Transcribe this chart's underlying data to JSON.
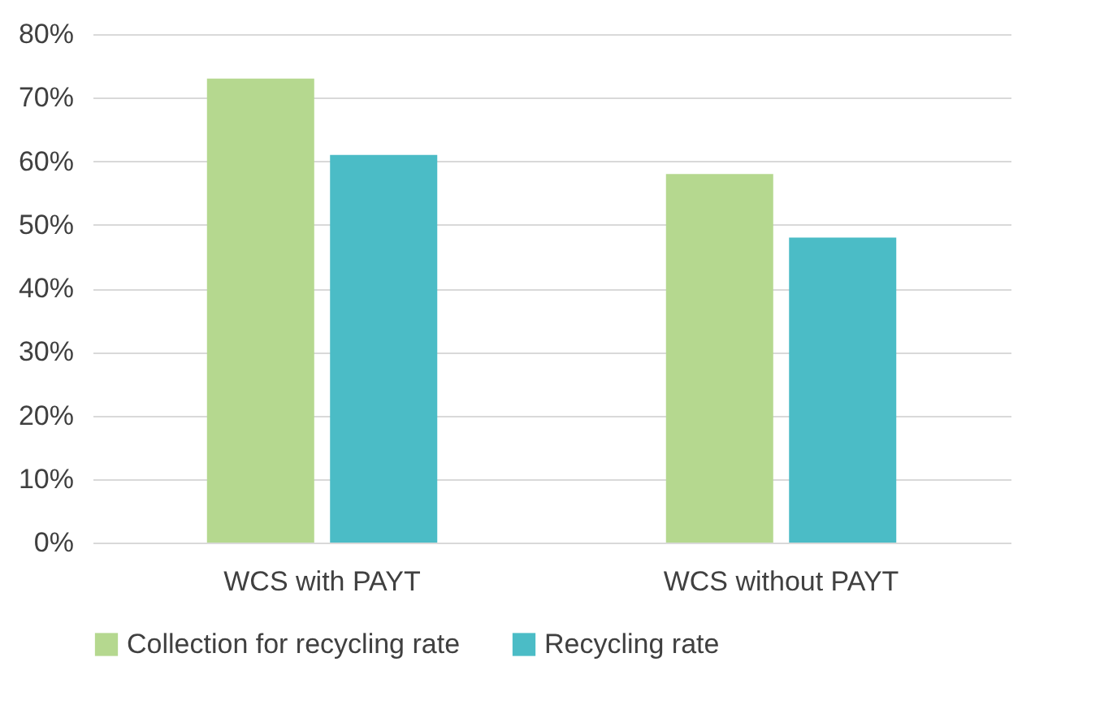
{
  "chart_data": {
    "type": "bar",
    "categories": [
      "WCS with PAYT",
      "WCS without PAYT"
    ],
    "series": [
      {
        "name": "Collection for recycling rate",
        "color": "#b5d88f",
        "values": [
          73,
          58
        ]
      },
      {
        "name": "Recycling rate",
        "color": "#4bbcc6",
        "values": [
          61,
          48
        ]
      }
    ],
    "ylim": [
      0,
      80
    ],
    "yticks": [
      {
        "value": 0,
        "label": "0%"
      },
      {
        "value": 10,
        "label": "10%"
      },
      {
        "value": 20,
        "label": "20%"
      },
      {
        "value": 30,
        "label": "30%"
      },
      {
        "value": 40,
        "label": "40%"
      },
      {
        "value": 50,
        "label": "50%"
      },
      {
        "value": 60,
        "label": "60%"
      },
      {
        "value": 70,
        "label": "70%"
      },
      {
        "value": 80,
        "label": "80%"
      }
    ],
    "grid": "y",
    "legend": "bottom"
  }
}
